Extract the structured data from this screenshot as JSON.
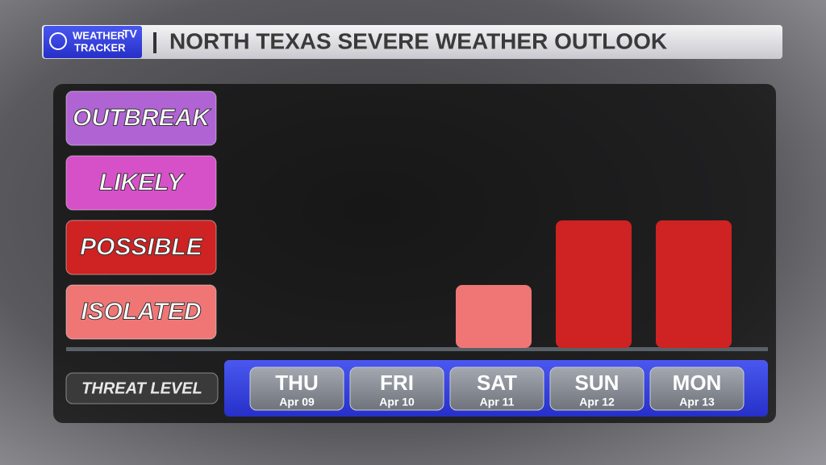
{
  "chart_data": {
    "type": "bar",
    "logo": {
      "line1": "WEATHER",
      "badge": "TV",
      "line2": "TRACKER"
    },
    "title": "NORTH TEXAS SEVERE WEATHER OUTLOOK",
    "x_label": "THREAT LEVEL",
    "categories": [
      "THU",
      "FRI",
      "SAT",
      "SUN",
      "MON"
    ],
    "dates": [
      "Apr 09",
      "Apr 10",
      "Apr 11",
      "Apr 12",
      "Apr 13"
    ],
    "values": [
      0,
      0,
      1,
      2,
      2
    ],
    "ylim": [
      0,
      4
    ],
    "yticks": [
      {
        "value": 1,
        "label": "ISOLATED",
        "color": "#f07676"
      },
      {
        "value": 2,
        "label": "POSSIBLE",
        "color": "#cf2222"
      },
      {
        "value": 3,
        "label": "LIKELY",
        "color": "#d651c8"
      },
      {
        "value": 4,
        "label": "OUTBREAK",
        "color": "#b064d4"
      }
    ]
  }
}
